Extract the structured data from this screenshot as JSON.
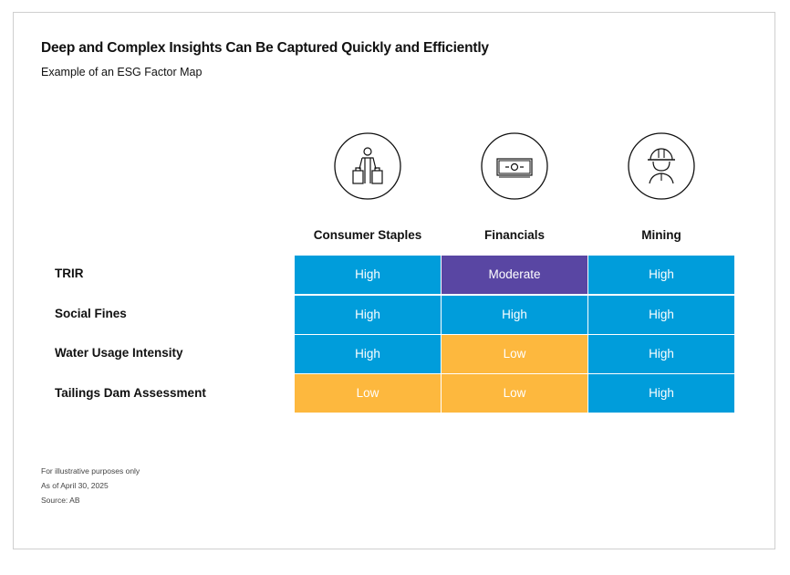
{
  "title": "Deep and Complex Insights Can Be Captured Quickly and Efficiently",
  "subtitle": "Example of an ESG Factor Map",
  "chart_data": {
    "type": "table",
    "columns": [
      {
        "label": "Consumer Staples",
        "icon": "shopper-with-bags-icon"
      },
      {
        "label": "Financials",
        "icon": "banknote-icon"
      },
      {
        "label": "Mining",
        "icon": "miner-hardhat-icon"
      }
    ],
    "rows": [
      {
        "label": "TRIR",
        "values": [
          "High",
          "Moderate",
          "High"
        ]
      },
      {
        "label": "Social Fines",
        "values": [
          "High",
          "High",
          "High"
        ]
      },
      {
        "label": "Water Usage Intensity",
        "values": [
          "High",
          "Low",
          "High"
        ]
      },
      {
        "label": "Tailings Dam Assessment",
        "values": [
          "Low",
          "Low",
          "High"
        ]
      }
    ],
    "level_colors": {
      "High": "#009ddb",
      "Moderate": "#5946a3",
      "Low": "#fdb83e"
    }
  },
  "footnotes": [
    "For illustrative purposes only",
    "As of April 30, 2025",
    "Source: AB"
  ]
}
